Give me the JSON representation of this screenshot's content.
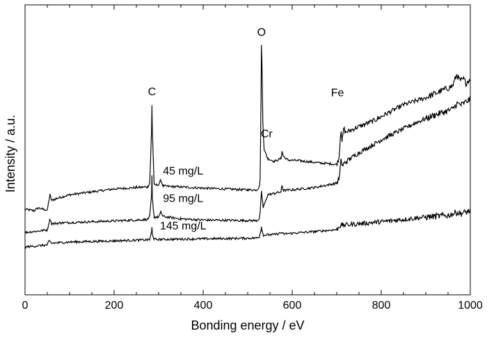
{
  "chart_data": {
    "type": "line",
    "title": "",
    "xlabel": "Bonding energy / eV",
    "ylabel": "Intensity / a.u.",
    "xlim": [
      0,
      1000
    ],
    "y_ticks_shown": false,
    "grid": false,
    "legend": "none",
    "x_ticks": [
      0,
      200,
      400,
      600,
      800,
      1000
    ],
    "x_tick_labels": [
      "0",
      "200",
      "400",
      "600",
      "800",
      "1000"
    ],
    "peak_annotations": [
      {
        "text": "C",
        "x": 285
      },
      {
        "text": "O",
        "x": 531
      },
      {
        "text": "Cr",
        "x": 577
      },
      {
        "text": "Fe",
        "x": 711
      }
    ],
    "series": [
      {
        "name": "45 mg/L",
        "line_color": "#000000",
        "points": [
          [
            0,
            0.295
          ],
          [
            20,
            0.29
          ],
          [
            30,
            0.3
          ],
          [
            40,
            0.295
          ],
          [
            50,
            0.292
          ],
          [
            54,
            0.33
          ],
          [
            56,
            0.345
          ],
          [
            60,
            0.325
          ],
          [
            70,
            0.332
          ],
          [
            100,
            0.345
          ],
          [
            150,
            0.355
          ],
          [
            200,
            0.365
          ],
          [
            250,
            0.37
          ],
          [
            275,
            0.372
          ],
          [
            280,
            0.385
          ],
          [
            284,
            0.56
          ],
          [
            285,
            0.655
          ],
          [
            286,
            0.56
          ],
          [
            290,
            0.378
          ],
          [
            300,
            0.38
          ],
          [
            305,
            0.395
          ],
          [
            310,
            0.375
          ],
          [
            350,
            0.372
          ],
          [
            400,
            0.368
          ],
          [
            450,
            0.365
          ],
          [
            500,
            0.362
          ],
          [
            520,
            0.362
          ],
          [
            526,
            0.372
          ],
          [
            528,
            0.4
          ],
          [
            530,
            0.68
          ],
          [
            531,
            0.86
          ],
          [
            532,
            0.8
          ],
          [
            534,
            0.6
          ],
          [
            537,
            0.5
          ],
          [
            545,
            0.47
          ],
          [
            560,
            0.46
          ],
          [
            575,
            0.47
          ],
          [
            577,
            0.495
          ],
          [
            580,
            0.478
          ],
          [
            590,
            0.465
          ],
          [
            620,
            0.462
          ],
          [
            660,
            0.455
          ],
          [
            700,
            0.45
          ],
          [
            705,
            0.47
          ],
          [
            708,
            0.54
          ],
          [
            710,
            0.57
          ],
          [
            712,
            0.53
          ],
          [
            716,
            0.575
          ],
          [
            720,
            0.56
          ],
          [
            750,
            0.58
          ],
          [
            790,
            0.605
          ],
          [
            800,
            0.615
          ],
          [
            850,
            0.655
          ],
          [
            900,
            0.68
          ],
          [
            930,
            0.7
          ],
          [
            960,
            0.72
          ],
          [
            970,
            0.76
          ],
          [
            975,
            0.742
          ],
          [
            980,
            0.738
          ],
          [
            985,
            0.745
          ],
          [
            990,
            0.73
          ],
          [
            1000,
            0.745
          ]
        ]
      },
      {
        "name": "95 mg/L",
        "line_color": "#000000",
        "points": [
          [
            0,
            0.215
          ],
          [
            30,
            0.22
          ],
          [
            50,
            0.224
          ],
          [
            54,
            0.25
          ],
          [
            56,
            0.262
          ],
          [
            60,
            0.245
          ],
          [
            80,
            0.248
          ],
          [
            150,
            0.252
          ],
          [
            250,
            0.258
          ],
          [
            275,
            0.26
          ],
          [
            280,
            0.27
          ],
          [
            284,
            0.34
          ],
          [
            285,
            0.41
          ],
          [
            286,
            0.33
          ],
          [
            290,
            0.268
          ],
          [
            300,
            0.268
          ],
          [
            305,
            0.285
          ],
          [
            310,
            0.27
          ],
          [
            350,
            0.262
          ],
          [
            400,
            0.258
          ],
          [
            500,
            0.256
          ],
          [
            520,
            0.256
          ],
          [
            526,
            0.262
          ],
          [
            528,
            0.285
          ],
          [
            530,
            0.33
          ],
          [
            531,
            0.355
          ],
          [
            532,
            0.34
          ],
          [
            535,
            0.3
          ],
          [
            545,
            0.345
          ],
          [
            560,
            0.35
          ],
          [
            575,
            0.355
          ],
          [
            577,
            0.378
          ],
          [
            580,
            0.36
          ],
          [
            600,
            0.362
          ],
          [
            650,
            0.37
          ],
          [
            700,
            0.385
          ],
          [
            706,
            0.405
          ],
          [
            708,
            0.44
          ],
          [
            710,
            0.47
          ],
          [
            712,
            0.445
          ],
          [
            718,
            0.455
          ],
          [
            730,
            0.47
          ],
          [
            750,
            0.49
          ],
          [
            790,
            0.525
          ],
          [
            800,
            0.535
          ],
          [
            840,
            0.565
          ],
          [
            880,
            0.595
          ],
          [
            920,
            0.62
          ],
          [
            960,
            0.64
          ],
          [
            970,
            0.66
          ],
          [
            980,
            0.655
          ],
          [
            990,
            0.665
          ],
          [
            1000,
            0.675
          ]
        ]
      },
      {
        "name": "145 mg/L",
        "line_color": "#000000",
        "points": [
          [
            0,
            0.165
          ],
          [
            50,
            0.172
          ],
          [
            54,
            0.185
          ],
          [
            60,
            0.178
          ],
          [
            100,
            0.182
          ],
          [
            200,
            0.186
          ],
          [
            280,
            0.19
          ],
          [
            284,
            0.215
          ],
          [
            285,
            0.232
          ],
          [
            286,
            0.21
          ],
          [
            290,
            0.191
          ],
          [
            350,
            0.192
          ],
          [
            450,
            0.194
          ],
          [
            520,
            0.196
          ],
          [
            526,
            0.2
          ],
          [
            530,
            0.225
          ],
          [
            531,
            0.235
          ],
          [
            532,
            0.222
          ],
          [
            535,
            0.206
          ],
          [
            560,
            0.208
          ],
          [
            577,
            0.214
          ],
          [
            580,
            0.21
          ],
          [
            650,
            0.218
          ],
          [
            700,
            0.225
          ],
          [
            708,
            0.238
          ],
          [
            710,
            0.245
          ],
          [
            712,
            0.24
          ],
          [
            750,
            0.245
          ],
          [
            800,
            0.252
          ],
          [
            850,
            0.26
          ],
          [
            900,
            0.268
          ],
          [
            950,
            0.274
          ],
          [
            970,
            0.284
          ],
          [
            980,
            0.28
          ],
          [
            1000,
            0.29
          ]
        ]
      }
    ],
    "series_labels": [
      {
        "text": "45 mg/L",
        "x": 355,
        "y": 0.415
      },
      {
        "text": "95 mg/L",
        "x": 355,
        "y": 0.32
      },
      {
        "text": "145 mg/L",
        "x": 355,
        "y": 0.225
      }
    ]
  }
}
